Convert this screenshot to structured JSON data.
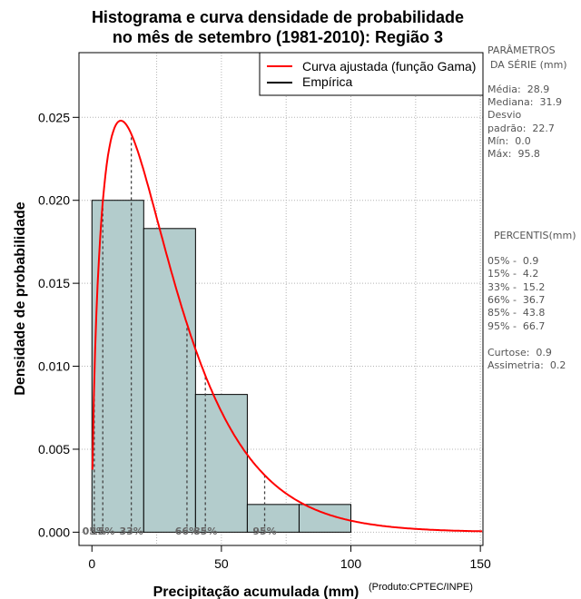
{
  "chart_data": {
    "type": "bar",
    "title_line1": "Histograma e curva densidade de probabilidade",
    "title_line2": "no mês de setembro (1981-2010): Região 3",
    "xlabel": "Precipitação acumulada (mm)",
    "ylabel": "Densidade de probabilidade",
    "xlim": [
      -5,
      151
    ],
    "ylim": [
      -0.0008,
      0.0289
    ],
    "x_ticks": [
      0,
      50,
      100,
      150
    ],
    "y_ticks": [
      "0.000",
      "0.005",
      "0.010",
      "0.015",
      "0.020",
      "0.025"
    ],
    "grid": true,
    "bins": [
      {
        "start": 0,
        "end": 20,
        "density": 0.02
      },
      {
        "start": 20,
        "end": 40,
        "density": 0.0183
      },
      {
        "start": 40,
        "end": 60,
        "density": 0.0083
      },
      {
        "start": 60,
        "end": 80,
        "density": 0.00167
      },
      {
        "start": 80,
        "end": 100,
        "density": 0.00167
      }
    ],
    "gamma_curve": {
      "name": "Curva ajustada (função Gama)",
      "shape": 1.62,
      "scale": 18.0,
      "color": "#ff0000"
    },
    "percentile_lines": [
      {
        "label": "05%",
        "x": 0.9
      },
      {
        "label": "15%",
        "x": 4.2
      },
      {
        "label": "33%",
        "x": 15.2
      },
      {
        "label": "66%",
        "x": 36.7
      },
      {
        "label": "85%",
        "x": 43.8
      },
      {
        "label": "95%",
        "x": 66.7
      }
    ],
    "legend": {
      "position": "top-right",
      "entries": [
        {
          "label": "Curva ajustada (função Gama)",
          "color": "#ff0000"
        },
        {
          "label": "Empírica",
          "color": "#000000"
        }
      ]
    },
    "colors": {
      "bar_fill": "#b3cccc",
      "curve": "#ff0000"
    }
  },
  "side_panel": {
    "params_title_1": "PARÂMETROS",
    "params_title_2": "DA SÉRIE (mm)",
    "stats": [
      "Média:  28.9",
      "Mediana:  31.9",
      "Desvio",
      "padrão:  22.7",
      "Mín:  0.0",
      "Máx:  95.8"
    ],
    "percentis_title": "PERCENTIS(mm)",
    "percentis": [
      "05% -  0.9",
      "15% -  4.2",
      "33% -  15.2",
      "66% -  36.7",
      "85% -  43.8",
      "95% -  66.7"
    ],
    "extra": [
      "Curtose:  0.9",
      "Assimetria:  0.2"
    ]
  },
  "footer": {
    "produto": "(Produto:CPTEC/INPE)"
  }
}
